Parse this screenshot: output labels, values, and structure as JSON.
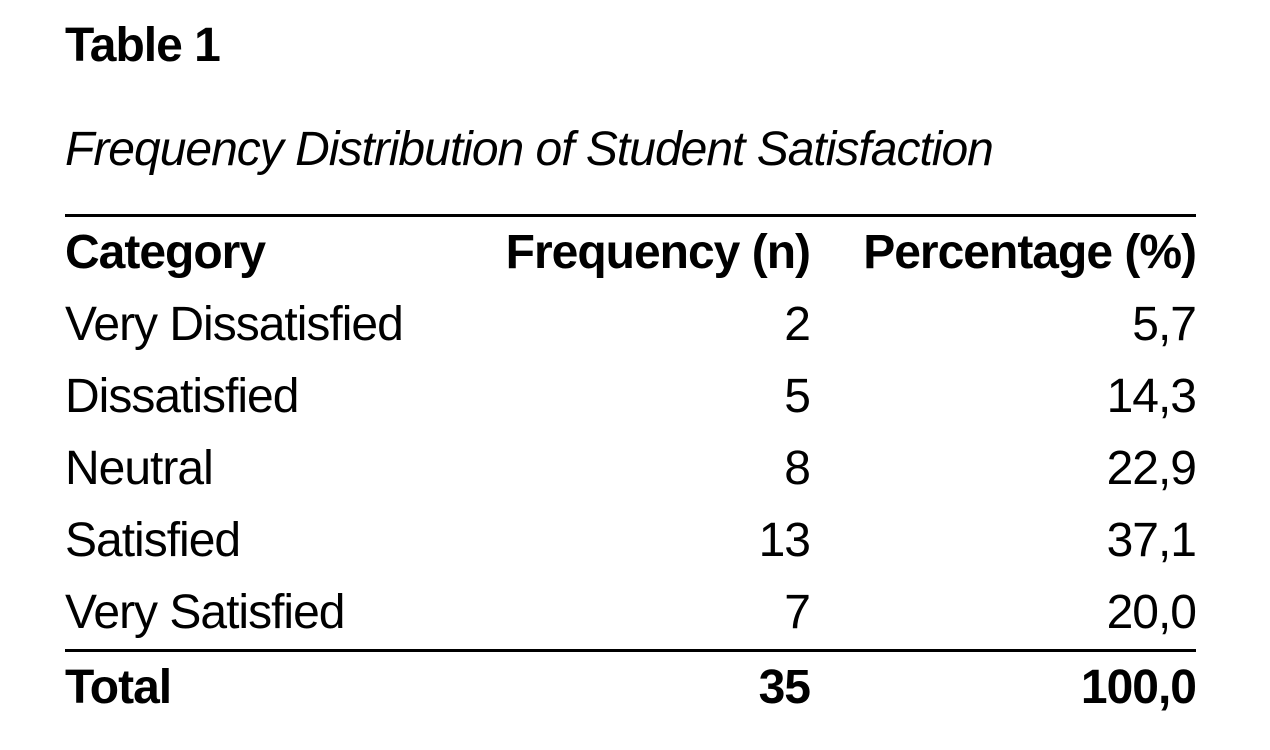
{
  "document": {
    "table_label": "Table 1",
    "table_caption": "Frequency Distribution of Student Satisfaction"
  },
  "table": {
    "columns": {
      "category": "Category",
      "frequency": "Frequency (n)",
      "percentage": "Percentage (%)"
    },
    "rows": [
      {
        "category": "Very Dissatisfied",
        "frequency": "2",
        "percentage": "5,7"
      },
      {
        "category": "Dissatisfied",
        "frequency": "5",
        "percentage": "14,3"
      },
      {
        "category": "Neutral",
        "frequency": "8",
        "percentage": "22,9"
      },
      {
        "category": "Satisfied",
        "frequency": "13",
        "percentage": "37,1"
      },
      {
        "category": "Very Satisfied",
        "frequency": "7",
        "percentage": "20,0"
      }
    ],
    "total": {
      "category": "Total",
      "frequency": "35",
      "percentage": "100,0"
    }
  },
  "colors": {
    "text": "#000000",
    "background": "#ffffff",
    "rule": "#000000"
  }
}
